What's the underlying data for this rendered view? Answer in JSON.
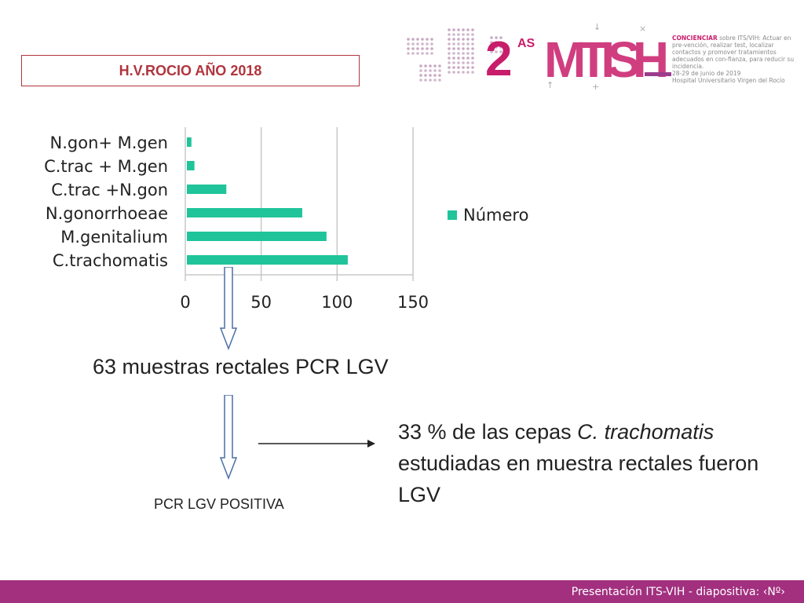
{
  "header": {
    "title": "H.V.ROCIO AÑO 2018"
  },
  "logo": {
    "edition": "2",
    "edition_suffix": "AS",
    "brand": "MTISH",
    "desc_lead": "CONCIENCIAR",
    "desc_body": "sobre ITS/VIH: Actuar en pre-vención, realizar test, localizar contactos y promover tratamientos adecuados en con-fianza, para reducir su incidencia.",
    "dates": "28-29 de junio de 2019",
    "venue": "Hospital Universitario Virgen del Rocío",
    "colors": {
      "magenta": "#c81d6b",
      "purple": "#9b3c8d"
    }
  },
  "chart_data": {
    "type": "bar",
    "orientation": "horizontal",
    "categories": [
      "N.gon+ M.gen",
      "C.trac + M.gen",
      "C.trac +N.gon",
      "N.gonorrhoeae",
      "M.genitalium",
      "C.trachomatis"
    ],
    "series": [
      {
        "name": "Número",
        "values": [
          3,
          5,
          26,
          76,
          92,
          106
        ],
        "color": "#1fc49a"
      }
    ],
    "xlim": [
      0,
      150
    ],
    "xticks": [
      "0",
      "50",
      "100",
      "150"
    ],
    "grid": true,
    "legend_position": "right"
  },
  "messages": {
    "samples": "63 muestras rectales PCR LGV",
    "result_pre": "33 % de las cepas ",
    "result_italic": "C. trachomatis",
    "result_post": " estudiadas en muestra rectales fueron LGV",
    "positive": "PCR LGV POSITIVA"
  },
  "footer": {
    "text": "Presentación ITS-VIH  - diapositiva:  ‹Nº›"
  }
}
